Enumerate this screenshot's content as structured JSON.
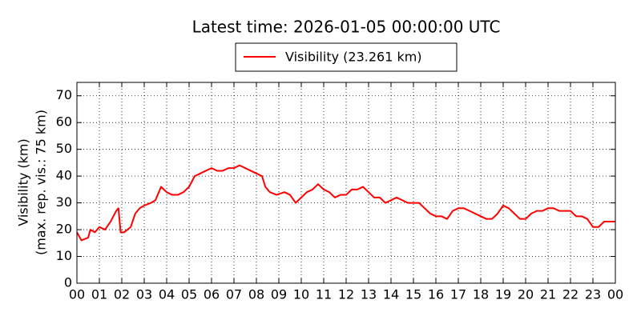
{
  "chart_data": {
    "type": "line",
    "title": "Latest time: 2026-01-05 00:00:00 UTC",
    "ylabel": [
      "Visibility (km)",
      "(max. rep. vis.: 75 km)"
    ],
    "x": [
      0,
      0.2,
      0.5,
      0.6,
      0.8,
      1,
      1.25,
      1.5,
      1.75,
      1.85,
      1.95,
      2.1,
      2.4,
      2.6,
      2.8,
      3,
      3.3,
      3.5,
      3.75,
      4,
      4.25,
      4.5,
      4.75,
      5,
      5.25,
      5.5,
      5.75,
      6,
      6.25,
      6.5,
      6.75,
      7,
      7.25,
      7.5,
      7.75,
      8,
      8.25,
      8.4,
      8.6,
      8.9,
      9.25,
      9.5,
      9.75,
      10,
      10.25,
      10.5,
      10.75,
      11,
      11.25,
      11.5,
      11.75,
      12,
      12.25,
      12.5,
      12.75,
      13,
      13.25,
      13.5,
      13.75,
      14,
      14.25,
      14.5,
      14.75,
      15,
      15.25,
      15.5,
      15.75,
      16,
      16.25,
      16.5,
      16.75,
      17,
      17.25,
      17.5,
      17.75,
      18,
      18.25,
      18.5,
      18.75,
      19,
      19.25,
      19.5,
      19.75,
      20,
      20.25,
      20.5,
      20.75,
      21,
      21.25,
      21.5,
      21.75,
      22,
      22.25,
      22.5,
      22.75,
      23,
      23.25,
      23.5,
      23.75,
      24
    ],
    "series": [
      {
        "name": "Visibility (23.261 km)",
        "color": "#ff0000",
        "values": [
          19,
          16,
          17,
          20,
          19,
          21,
          20,
          23,
          27,
          28,
          19,
          19,
          21,
          26,
          28,
          29,
          30,
          31,
          36,
          34,
          33,
          33,
          34,
          36,
          40,
          41,
          42,
          43,
          42,
          42,
          43,
          43,
          44,
          43,
          42,
          41,
          40,
          36,
          34,
          33,
          34,
          33,
          30,
          32,
          34,
          35,
          37,
          35,
          34,
          32,
          33,
          33,
          35,
          35,
          36,
          34,
          32,
          32,
          30,
          31,
          32,
          31,
          30,
          30,
          30,
          28,
          26,
          25,
          25,
          24,
          27,
          28,
          28,
          27,
          26,
          25,
          24,
          24,
          26,
          29,
          28,
          26,
          24,
          24,
          26,
          27,
          27,
          28,
          28,
          27,
          27,
          27,
          25,
          25,
          24,
          21,
          21,
          23,
          23,
          23
        ]
      }
    ],
    "xlim": [
      0,
      24
    ],
    "ylim": [
      0,
      75
    ],
    "xticks": [
      {
        "value": 0,
        "label": "00"
      },
      {
        "value": 1,
        "label": "01"
      },
      {
        "value": 2,
        "label": "02"
      },
      {
        "value": 3,
        "label": "03"
      },
      {
        "value": 4,
        "label": "04"
      },
      {
        "value": 5,
        "label": "05"
      },
      {
        "value": 6,
        "label": "06"
      },
      {
        "value": 7,
        "label": "07"
      },
      {
        "value": 8,
        "label": "08"
      },
      {
        "value": 9,
        "label": "09"
      },
      {
        "value": 10,
        "label": "10"
      },
      {
        "value": 11,
        "label": "11"
      },
      {
        "value": 12,
        "label": "12"
      },
      {
        "value": 13,
        "label": "13"
      },
      {
        "value": 14,
        "label": "14"
      },
      {
        "value": 15,
        "label": "15"
      },
      {
        "value": 16,
        "label": "16"
      },
      {
        "value": 17,
        "label": "17"
      },
      {
        "value": 18,
        "label": "18"
      },
      {
        "value": 19,
        "label": "19"
      },
      {
        "value": 20,
        "label": "20"
      },
      {
        "value": 21,
        "label": "21"
      },
      {
        "value": 22,
        "label": "22"
      },
      {
        "value": 23,
        "label": "23"
      },
      {
        "value": 24,
        "label": "00"
      }
    ],
    "yticks": [
      0,
      10,
      20,
      30,
      40,
      50,
      60,
      70
    ],
    "grid": true,
    "legend": "top"
  }
}
